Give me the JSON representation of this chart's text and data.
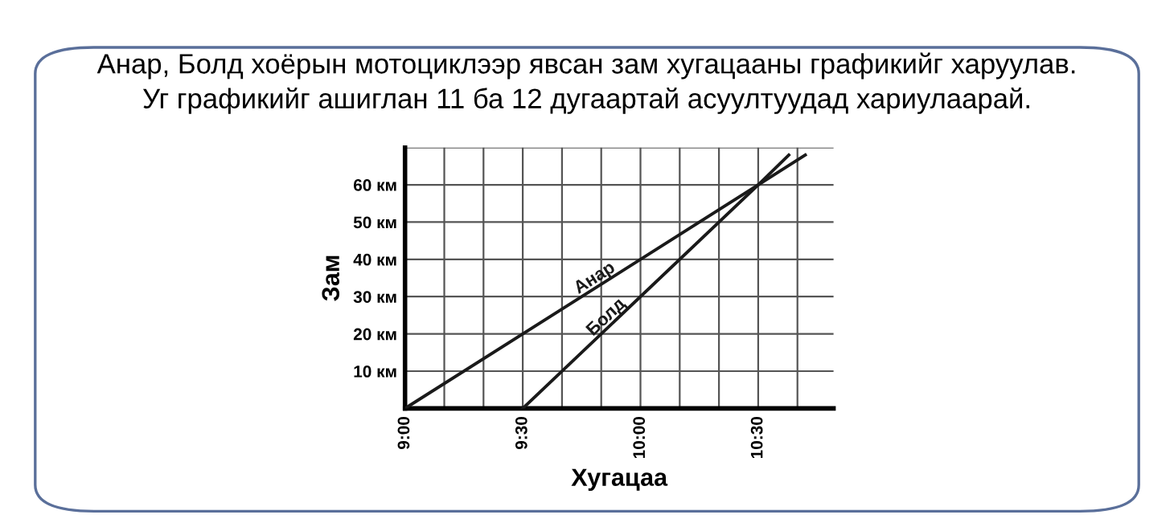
{
  "chart_data": {
    "type": "line",
    "title": "Анар, Болд хоёрын мотоциклээр явсан зам хугацааны графикийг харуулав.\nУг графикийг ашиглан 11 ба 12 дугаартай асуултуудад хариулаарай.",
    "xlabel": "Хугацаа",
    "ylabel": "Зам",
    "xlim": [
      9,
      10.82
    ],
    "ylim": [
      0,
      70
    ],
    "xticks": [
      {
        "value": 9,
        "label": "9:00"
      },
      {
        "value": 9.1667,
        "label": null
      },
      {
        "value": 9.3333,
        "label": null
      },
      {
        "value": 9.5,
        "label": "9:30"
      },
      {
        "value": 9.6667,
        "label": null
      },
      {
        "value": 9.8333,
        "label": null
      },
      {
        "value": 10,
        "label": "10:00"
      },
      {
        "value": 10.1667,
        "label": null
      },
      {
        "value": 10.3333,
        "label": null
      },
      {
        "value": 10.5,
        "label": "10:30"
      },
      {
        "value": 10.6667,
        "label": null
      }
    ],
    "yticks": [
      {
        "value": 10,
        "label": "10 км"
      },
      {
        "value": 20,
        "label": "20 км"
      },
      {
        "value": 30,
        "label": "30 км"
      },
      {
        "value": 40,
        "label": "40 км"
      },
      {
        "value": 50,
        "label": "50 км"
      },
      {
        "value": 60,
        "label": "60 км"
      },
      {
        "value": 70,
        "label": null
      }
    ],
    "grid": true,
    "legend": false,
    "series": [
      {
        "name": "Анар",
        "color": "#1a1a1a",
        "x": [
          9,
          10.5,
          10.7
        ],
        "values": [
          0,
          60,
          68
        ]
      },
      {
        "name": "Болд",
        "color": "#1a1a1a",
        "x": [
          9.5,
          10.5,
          10.63
        ],
        "values": [
          0,
          60,
          68
        ]
      }
    ]
  }
}
